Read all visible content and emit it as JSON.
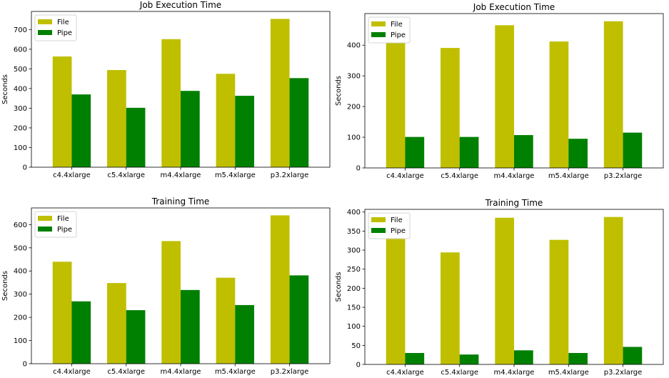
{
  "colors": {
    "file": "#bfbf00",
    "pipe": "#008000",
    "frame": "#d6d6d6"
  },
  "chart_data": [
    {
      "type": "bar",
      "title": "Job Execution Time",
      "ylabel": "Seconds",
      "categories": [
        "c4.4xlarge",
        "c5.4xlarge",
        "m4.4xlarge",
        "m5.4xlarge",
        "p3.2xlarge"
      ],
      "series": [
        {
          "name": "File",
          "values": [
            563,
            494,
            651,
            475,
            754
          ]
        },
        {
          "name": "Pipe",
          "values": [
            370,
            302,
            388,
            363,
            453
          ]
        }
      ],
      "ylim": [
        0,
        792
      ],
      "yticks": [
        0,
        100,
        200,
        300,
        400,
        500,
        600,
        700
      ],
      "legend": "top-left"
    },
    {
      "type": "bar",
      "title": "Job Execution Time",
      "ylabel": "Seconds",
      "categories": [
        "c4.4xlarge",
        "c5.4xlarge",
        "m4.4xlarge",
        "m5.4xlarge",
        "p3.2xlarge"
      ],
      "series": [
        {
          "name": "File",
          "values": [
            409,
            391,
            465,
            412,
            478
          ]
        },
        {
          "name": "Pipe",
          "values": [
            101,
            101,
            107,
            95,
            115
          ]
        }
      ],
      "ylim": [
        0,
        503
      ],
      "yticks": [
        0,
        100,
        200,
        300,
        400
      ],
      "legend": "top-left"
    },
    {
      "type": "bar",
      "title": "Training Time",
      "ylabel": "Seconds",
      "categories": [
        "c4.4xlarge",
        "c5.4xlarge",
        "m4.4xlarge",
        "m5.4xlarge",
        "p3.2xlarge"
      ],
      "series": [
        {
          "name": "File",
          "values": [
            440,
            348,
            529,
            371,
            640
          ]
        },
        {
          "name": "Pipe",
          "values": [
            269,
            231,
            318,
            253,
            381
          ]
        }
      ],
      "ylim": [
        0,
        672
      ],
      "yticks": [
        0,
        100,
        200,
        300,
        400,
        500,
        600
      ],
      "legend": "top-left"
    },
    {
      "type": "bar",
      "title": "Training Time",
      "ylabel": "Seconds",
      "categories": [
        "c4.4xlarge",
        "c5.4xlarge",
        "m4.4xlarge",
        "m5.4xlarge",
        "p3.2xlarge"
      ],
      "series": [
        {
          "name": "File",
          "values": [
            332,
            294,
            385,
            327,
            387
          ]
        },
        {
          "name": "Pipe",
          "values": [
            30,
            26,
            37,
            30,
            46
          ]
        }
      ],
      "ylim": [
        0,
        407
      ],
      "yticks": [
        0,
        50,
        100,
        150,
        200,
        250,
        300,
        350,
        400
      ],
      "legend": "top-left"
    }
  ]
}
